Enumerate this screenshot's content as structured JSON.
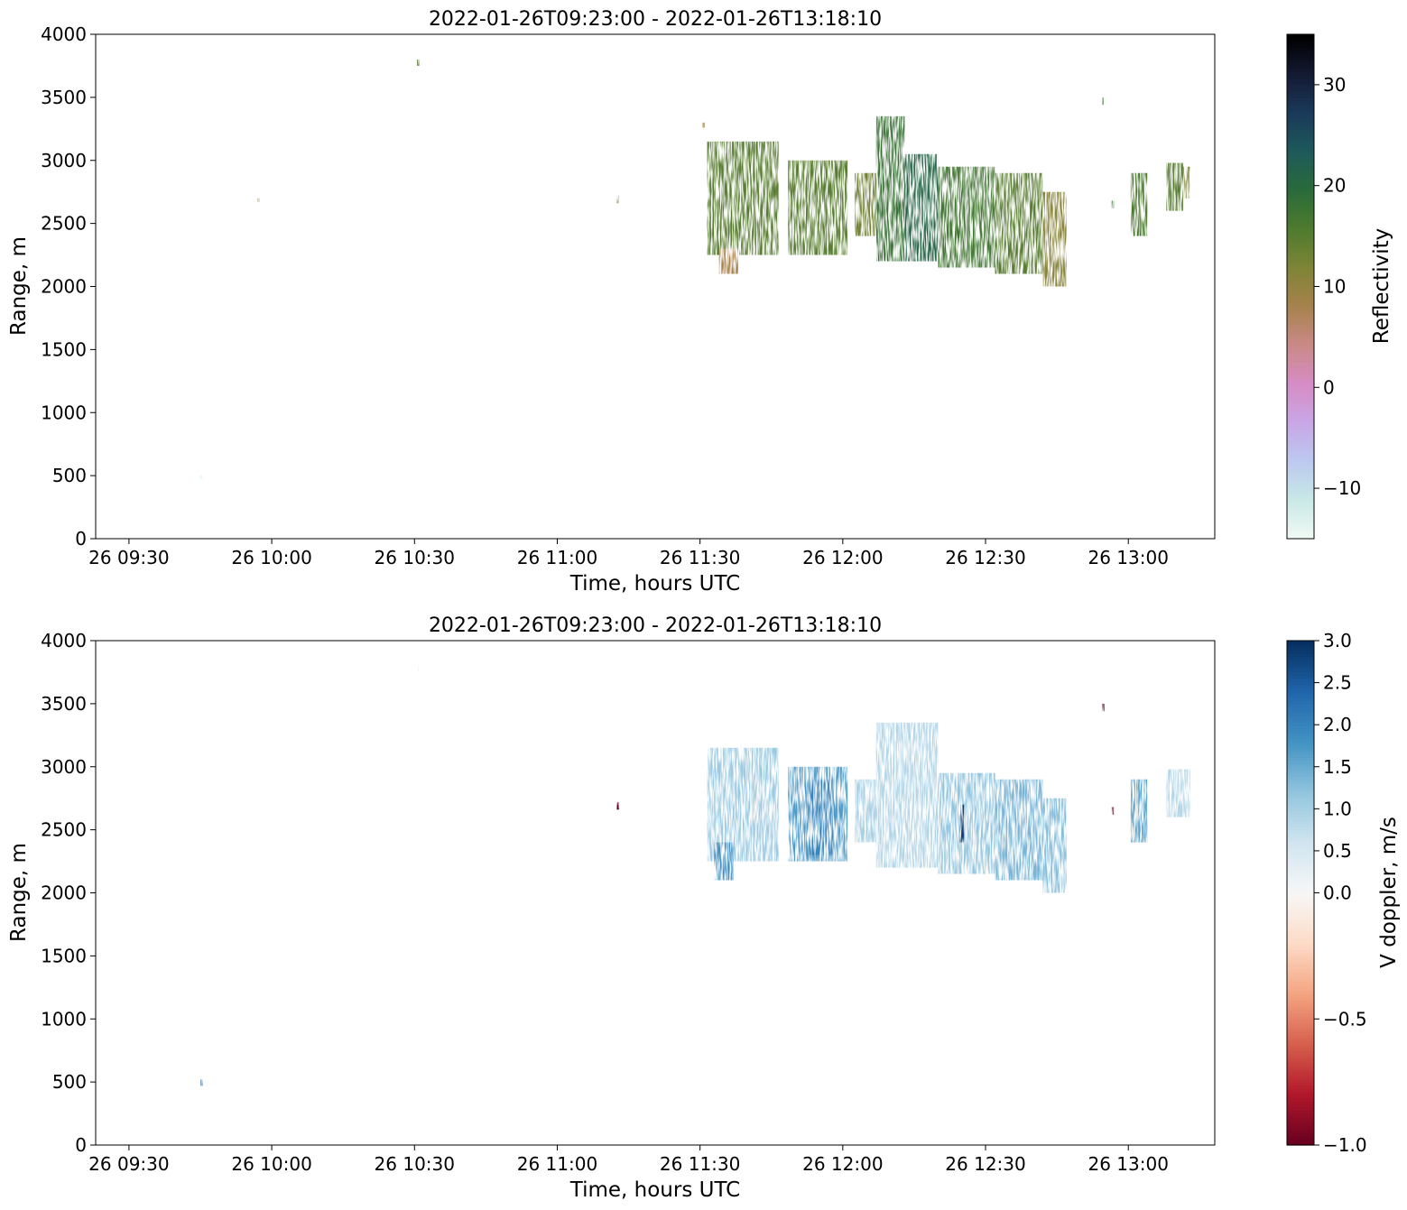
{
  "chart_data": [
    {
      "type": "heatmap",
      "title": "2022-01-26T09:23:00 - 2022-01-26T13:18:10",
      "xlabel": "Time, hours UTC",
      "ylabel": "Range, m",
      "xlim": [
        "2022-01-26T09:23:00",
        "2022-01-26T13:18:10"
      ],
      "ylim": [
        0,
        4000
      ],
      "x_ticks": [
        "26 09:30",
        "26 10:00",
        "26 10:30",
        "26 11:00",
        "26 11:30",
        "26 12:00",
        "26 12:30",
        "26 13:00"
      ],
      "x_tick_times": [
        "2022-01-26T09:30:00",
        "2022-01-26T10:00:00",
        "2022-01-26T10:30:00",
        "2022-01-26T11:00:00",
        "2022-01-26T11:30:00",
        "2022-01-26T12:00:00",
        "2022-01-26T12:30:00",
        "2022-01-26T13:00:00"
      ],
      "y_ticks": [
        "0",
        "500",
        "1000",
        "1500",
        "2000",
        "2500",
        "3000",
        "3500",
        "4000"
      ],
      "colorbar": {
        "label": "Reflectivity",
        "range": [
          -15,
          35
        ],
        "ticks": [
          "−10",
          "0",
          "10",
          "20",
          "30"
        ],
        "tick_values": [
          -10,
          0,
          10,
          20,
          30
        ],
        "colormap": "cubehelix_r",
        "colors": [
          "#f0f9f4",
          "#c8e8e6",
          "#bcc8f0",
          "#c9a6e6",
          "#d68cc4",
          "#c98a86",
          "#a6824c",
          "#7f8436",
          "#4e7b2e",
          "#2a6b3a",
          "#1e5a5a",
          "#1a3a5a",
          "#141a33",
          "#000000"
        ]
      },
      "cells": [
        {
          "t0": "2022-01-26T09:45:00",
          "t1": "2022-01-26T09:45:30",
          "r0": 470,
          "r1": 500,
          "value": -12
        },
        {
          "t0": "2022-01-26T09:57:00",
          "t1": "2022-01-26T09:57:30",
          "r0": 2670,
          "r1": 2700,
          "value": 8
        },
        {
          "t0": "2022-01-26T10:30:30",
          "t1": "2022-01-26T10:31:00",
          "r0": 3750,
          "r1": 3800,
          "value": 15
        },
        {
          "t0": "2022-01-26T11:12:30",
          "t1": "2022-01-26T11:13:00",
          "r0": 2660,
          "r1": 2720,
          "value": 10
        },
        {
          "t0": "2022-01-26T11:30:30",
          "t1": "2022-01-26T11:31:00",
          "r0": 3260,
          "r1": 3300,
          "value": 8
        },
        {
          "t0": "2022-01-26T11:31:30",
          "t1": "2022-01-26T11:46:30",
          "r0": 2250,
          "r1": 3150,
          "value": 15
        },
        {
          "t0": "2022-01-26T11:34:00",
          "t1": "2022-01-26T11:38:00",
          "r0": 2100,
          "r1": 2300,
          "value": 8
        },
        {
          "t0": "2022-01-26T11:48:30",
          "t1": "2022-01-26T12:01:00",
          "r0": 2250,
          "r1": 3000,
          "value": 15
        },
        {
          "t0": "2022-01-26T12:02:30",
          "t1": "2022-01-26T12:07:00",
          "r0": 2400,
          "r1": 2900,
          "value": 13
        },
        {
          "t0": "2022-01-26T12:07:00",
          "t1": "2022-01-26T12:13:00",
          "r0": 2200,
          "r1": 3350,
          "value": 18
        },
        {
          "t0": "2022-01-26T12:13:00",
          "t1": "2022-01-26T12:20:00",
          "r0": 2200,
          "r1": 3050,
          "value": 21
        },
        {
          "t0": "2022-01-26T12:20:00",
          "t1": "2022-01-26T12:32:00",
          "r0": 2150,
          "r1": 2950,
          "value": 17
        },
        {
          "t0": "2022-01-26T12:32:00",
          "t1": "2022-01-26T12:42:00",
          "r0": 2100,
          "r1": 2900,
          "value": 15
        },
        {
          "t0": "2022-01-26T12:42:00",
          "t1": "2022-01-26T12:47:00",
          "r0": 2000,
          "r1": 2750,
          "value": 11
        },
        {
          "t0": "2022-01-26T12:54:30",
          "t1": "2022-01-26T12:55:00",
          "r0": 3440,
          "r1": 3500,
          "value": 16
        },
        {
          "t0": "2022-01-26T12:56:30",
          "t1": "2022-01-26T12:57:00",
          "r0": 2620,
          "r1": 2680,
          "value": 18
        },
        {
          "t0": "2022-01-26T13:00:30",
          "t1": "2022-01-26T13:04:00",
          "r0": 2400,
          "r1": 2900,
          "value": 16
        },
        {
          "t0": "2022-01-26T13:08:00",
          "t1": "2022-01-26T13:11:30",
          "r0": 2600,
          "r1": 2980,
          "value": 15
        },
        {
          "t0": "2022-01-26T13:11:30",
          "t1": "2022-01-26T13:13:00",
          "r0": 2700,
          "r1": 2950,
          "value": 12
        }
      ]
    },
    {
      "type": "heatmap",
      "title": "2022-01-26T09:23:00 - 2022-01-26T13:18:10",
      "xlabel": "Time, hours UTC",
      "ylabel": "Range, m",
      "xlim": [
        "2022-01-26T09:23:00",
        "2022-01-26T13:18:10"
      ],
      "ylim": [
        0,
        4000
      ],
      "x_ticks": [
        "26 09:30",
        "26 10:00",
        "26 10:30",
        "26 11:00",
        "26 11:30",
        "26 12:00",
        "26 12:30",
        "26 13:00"
      ],
      "x_tick_times": [
        "2022-01-26T09:30:00",
        "2022-01-26T10:00:00",
        "2022-01-26T10:30:00",
        "2022-01-26T11:00:00",
        "2022-01-26T11:30:00",
        "2022-01-26T12:00:00",
        "2022-01-26T12:30:00",
        "2022-01-26T13:00:00"
      ],
      "y_ticks": [
        "0",
        "500",
        "1000",
        "1500",
        "2000",
        "2500",
        "3000",
        "3500",
        "4000"
      ],
      "colorbar": {
        "label": "V doppler, m/s",
        "range": [
          -1.0,
          3.0
        ],
        "scale": "two-slope, centre 0.0",
        "ticks": [
          "−1.0",
          "−0.5",
          "0.0",
          "0.5",
          "1.0",
          "1.5",
          "2.0",
          "2.5",
          "3.0"
        ],
        "tick_values": [
          -1.0,
          -0.5,
          0.0,
          0.5,
          1.0,
          1.5,
          2.0,
          2.5,
          3.0
        ],
        "colormap": "RdBu",
        "colors": [
          "#67001f",
          "#b2182b",
          "#d6604d",
          "#f4a582",
          "#fddbc7",
          "#f7f7f7",
          "#d1e5f0",
          "#92c5de",
          "#4393c3",
          "#2166ac",
          "#053061"
        ]
      },
      "cells": [
        {
          "t0": "2022-01-26T09:45:00",
          "t1": "2022-01-26T09:45:30",
          "r0": 470,
          "r1": 520,
          "value": 2.5
        },
        {
          "t0": "2022-01-26T10:30:30",
          "t1": "2022-01-26T10:31:00",
          "r0": 3750,
          "r1": 3800,
          "value": 0.3
        },
        {
          "t0": "2022-01-26T11:12:30",
          "t1": "2022-01-26T11:13:00",
          "r0": 2660,
          "r1": 2720,
          "value": -1.0
        },
        {
          "t0": "2022-01-26T11:31:30",
          "t1": "2022-01-26T11:46:30",
          "r0": 2250,
          "r1": 3150,
          "value": 1.1
        },
        {
          "t0": "2022-01-26T11:33:00",
          "t1": "2022-01-26T11:37:00",
          "r0": 2100,
          "r1": 2400,
          "value": 1.9
        },
        {
          "t0": "2022-01-26T11:48:30",
          "t1": "2022-01-26T12:01:00",
          "r0": 2250,
          "r1": 3000,
          "value": 1.7
        },
        {
          "t0": "2022-01-26T11:53:00",
          "t1": "2022-01-26T11:58:00",
          "r0": 2300,
          "r1": 2900,
          "value": 2.0
        },
        {
          "t0": "2022-01-26T12:02:30",
          "t1": "2022-01-26T12:07:00",
          "r0": 2400,
          "r1": 2900,
          "value": 1.0
        },
        {
          "t0": "2022-01-26T12:07:00",
          "t1": "2022-01-26T12:20:00",
          "r0": 2200,
          "r1": 3350,
          "value": 0.9
        },
        {
          "t0": "2022-01-26T12:20:00",
          "t1": "2022-01-26T12:32:00",
          "r0": 2150,
          "r1": 2950,
          "value": 1.2
        },
        {
          "t0": "2022-01-26T12:24:30",
          "t1": "2022-01-26T12:25:30",
          "r0": 2400,
          "r1": 2700,
          "value": 2.8
        },
        {
          "t0": "2022-01-26T12:32:00",
          "t1": "2022-01-26T12:42:00",
          "r0": 2100,
          "r1": 2900,
          "value": 1.4
        },
        {
          "t0": "2022-01-26T12:42:00",
          "t1": "2022-01-26T12:47:00",
          "r0": 2000,
          "r1": 2750,
          "value": 1.3
        },
        {
          "t0": "2022-01-26T12:54:30",
          "t1": "2022-01-26T12:55:00",
          "r0": 3440,
          "r1": 3500,
          "value": -1.0
        },
        {
          "t0": "2022-01-26T12:56:30",
          "t1": "2022-01-26T12:57:00",
          "r0": 2620,
          "r1": 2680,
          "value": -1.0
        },
        {
          "t0": "2022-01-26T13:00:30",
          "t1": "2022-01-26T13:04:00",
          "r0": 2400,
          "r1": 2900,
          "value": 1.6
        },
        {
          "t0": "2022-01-26T13:08:00",
          "t1": "2022-01-26T13:13:00",
          "r0": 2600,
          "r1": 2980,
          "value": 0.9
        }
      ]
    }
  ]
}
